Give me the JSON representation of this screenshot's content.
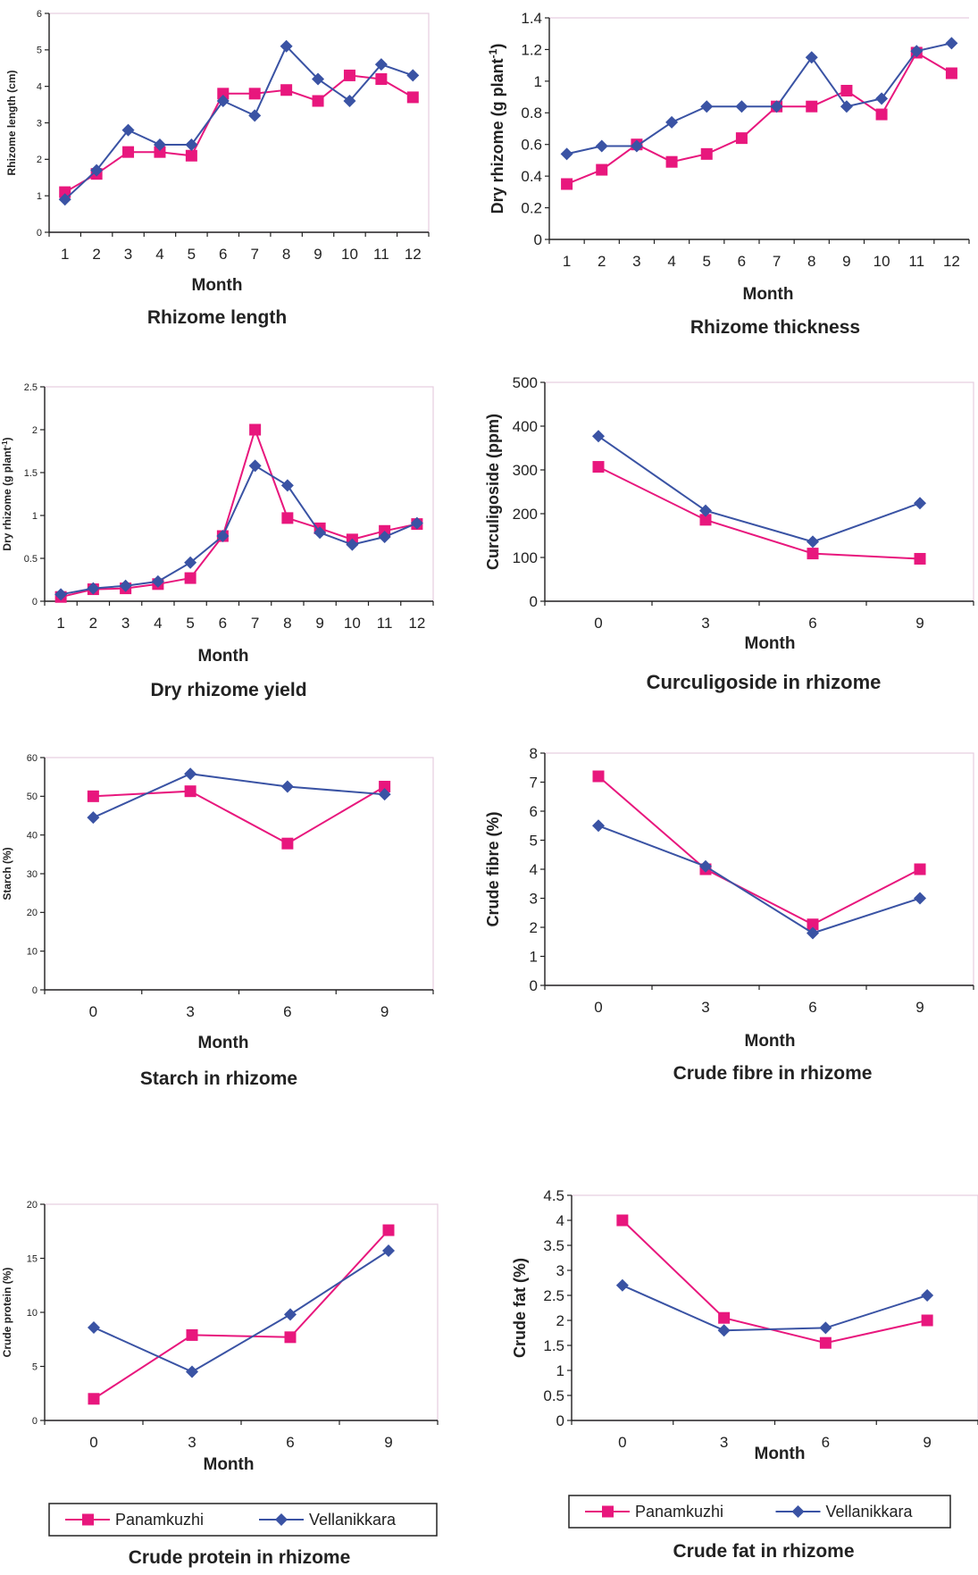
{
  "series_colors": {
    "Panamkuzhi": "#e8177d",
    "Vellanikkara": "#3a53a4"
  },
  "legend": {
    "items": [
      {
        "name": "Panamkuzhi",
        "marker": "square"
      },
      {
        "name": "Vellanikkara",
        "marker": "diamond"
      }
    ]
  },
  "chart_data": [
    {
      "id": "rhizome-length",
      "type": "line",
      "title": "Rhizome length",
      "xlabel": "Month",
      "ylabel": "Rhizome length (cm)",
      "ylim": [
        0,
        6
      ],
      "yticks": [
        "0",
        "1",
        "2",
        "3",
        "4",
        "5",
        "6"
      ],
      "x": [
        "1",
        "2",
        "3",
        "4",
        "5",
        "6",
        "7",
        "8",
        "9",
        "10",
        "11",
        "12"
      ],
      "series": [
        {
          "name": "Panamkuzhi",
          "values": [
            1.1,
            1.6,
            2.2,
            2.2,
            2.1,
            3.8,
            3.8,
            3.9,
            3.6,
            4.3,
            4.2,
            3.7
          ]
        },
        {
          "name": "Vellanikkara",
          "values": [
            0.9,
            1.7,
            2.8,
            2.4,
            2.4,
            3.6,
            3.2,
            5.1,
            4.2,
            3.6,
            4.6,
            4.3
          ]
        }
      ]
    },
    {
      "id": "rhizome-thickness",
      "type": "line",
      "title": "Rhizome thickness",
      "xlabel": "Month",
      "ylabel": "Dry rhizome (g plant-1)",
      "ylim": [
        0,
        1.4
      ],
      "yticks": [
        "0",
        "0.2",
        "0.4",
        "0.6",
        "0.8",
        "1",
        "1.2",
        "1.4"
      ],
      "x": [
        "1",
        "2",
        "3",
        "4",
        "5",
        "6",
        "7",
        "8",
        "9",
        "10",
        "11",
        "12"
      ],
      "series": [
        {
          "name": "Panamkuzhi",
          "values": [
            0.35,
            0.44,
            0.6,
            0.49,
            0.54,
            0.64,
            0.84,
            0.84,
            0.94,
            0.79,
            1.18,
            1.05
          ]
        },
        {
          "name": "Vellanikkara",
          "values": [
            0.54,
            0.59,
            0.59,
            0.74,
            0.84,
            0.84,
            0.84,
            1.15,
            0.84,
            0.89,
            1.19,
            1.24
          ]
        }
      ]
    },
    {
      "id": "dry-rhizome-yield",
      "type": "line",
      "title": "Dry rhizome yield",
      "xlabel": "Month",
      "ylabel": "Dry rhizome (g plant-1)",
      "ylim": [
        0,
        2.5
      ],
      "yticks": [
        "0",
        "0.5",
        "1",
        "1.5",
        "2",
        "2.5"
      ],
      "x": [
        "1",
        "2",
        "3",
        "4",
        "5",
        "6",
        "7",
        "8",
        "9",
        "10",
        "11",
        "12"
      ],
      "series": [
        {
          "name": "Panamkuzhi",
          "values": [
            0.05,
            0.14,
            0.15,
            0.2,
            0.27,
            0.76,
            2.0,
            0.97,
            0.85,
            0.72,
            0.82,
            0.9
          ]
        },
        {
          "name": "Vellanikkara",
          "values": [
            0.08,
            0.15,
            0.18,
            0.23,
            0.45,
            0.76,
            1.58,
            1.35,
            0.8,
            0.66,
            0.75,
            0.91
          ]
        }
      ]
    },
    {
      "id": "curculigoside",
      "type": "line",
      "title": "Curculigoside in rhizome",
      "xlabel": "Month",
      "ylabel": "Curculigoside (ppm)",
      "ylim": [
        0,
        500
      ],
      "yticks": [
        "0",
        "100",
        "200",
        "300",
        "400",
        "500"
      ],
      "x": [
        "0",
        "3",
        "6",
        "9"
      ],
      "series": [
        {
          "name": "Panamkuzhi",
          "values": [
            307,
            186,
            109,
            97
          ]
        },
        {
          "name": "Vellanikkara",
          "values": [
            377,
            207,
            136,
            224
          ]
        }
      ]
    },
    {
      "id": "starch",
      "type": "line",
      "title": "Starch in rhizome",
      "xlabel": "Month",
      "ylabel": "Starch (%)",
      "ylim": [
        0,
        60
      ],
      "yticks": [
        "0",
        "10",
        "20",
        "30",
        "40",
        "50",
        "60"
      ],
      "x": [
        "0",
        "3",
        "6",
        "9"
      ],
      "series": [
        {
          "name": "Panamkuzhi",
          "values": [
            50,
            51.3,
            37.8,
            52.5
          ]
        },
        {
          "name": "Vellanikkara",
          "values": [
            44.5,
            55.8,
            52.5,
            50.5
          ]
        }
      ]
    },
    {
      "id": "crude-fibre",
      "type": "line",
      "title": "Crude fibre in rhizome",
      "xlabel": "Month",
      "ylabel": "Crude fibre (%)",
      "ylim": [
        0,
        8
      ],
      "yticks": [
        "0",
        "1",
        "2",
        "3",
        "4",
        "5",
        "6",
        "7",
        "8"
      ],
      "x": [
        "0",
        "3",
        "6",
        "9"
      ],
      "series": [
        {
          "name": "Panamkuzhi",
          "values": [
            7.2,
            4.0,
            2.1,
            4.0
          ]
        },
        {
          "name": "Vellanikkara",
          "values": [
            5.5,
            4.1,
            1.8,
            3.0
          ]
        }
      ]
    },
    {
      "id": "crude-protein",
      "type": "line",
      "title": "Crude protein in rhizome",
      "xlabel": "Month",
      "ylabel": "Crude protein (%)",
      "ylim": [
        0,
        20
      ],
      "yticks": [
        "0",
        "5",
        "10",
        "15",
        "20"
      ],
      "x": [
        "0",
        "3",
        "6",
        "9"
      ],
      "series": [
        {
          "name": "Panamkuzhi",
          "values": [
            2.0,
            7.9,
            7.7,
            17.6
          ]
        },
        {
          "name": "Vellanikkara",
          "values": [
            8.6,
            4.5,
            9.8,
            15.7
          ]
        }
      ]
    },
    {
      "id": "crude-fat",
      "type": "line",
      "title": "Crude fat in rhizome",
      "xlabel": "Month",
      "ylabel": "Crude fat (%)",
      "ylim": [
        0,
        4.5
      ],
      "yticks": [
        "0",
        "0.5",
        "1",
        "1.5",
        "2",
        "2.5",
        "3",
        "3.5",
        "4",
        "4.5"
      ],
      "x": [
        "0",
        "3",
        "6",
        "9"
      ],
      "series": [
        {
          "name": "Panamkuzhi",
          "values": [
            4.0,
            2.05,
            1.55,
            2.0
          ]
        },
        {
          "name": "Vellanikkara",
          "values": [
            2.7,
            1.8,
            1.85,
            2.5
          ]
        }
      ]
    }
  ]
}
